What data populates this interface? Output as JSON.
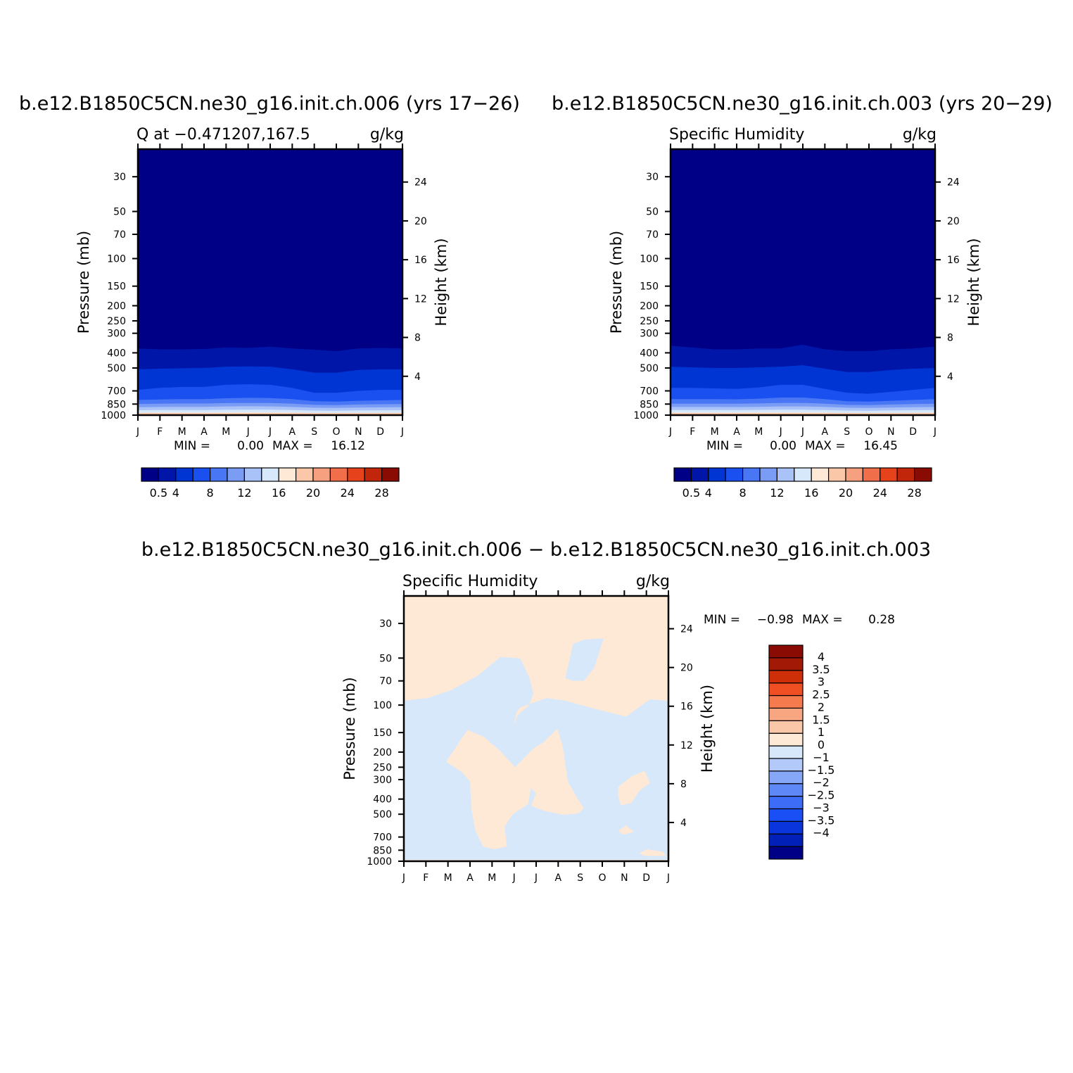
{
  "figure": {
    "panels": [
      {
        "title": "b.e12.B1850C5CN.ne30_g16.init.ch.006 (yrs 17−26)",
        "left_label": "Q at −0.471207,167.5",
        "right_label": "g/kg",
        "stats": {
          "min_label": "MIN =",
          "min_value": "0.00",
          "max_label": "MAX =",
          "max_value": "16.12"
        }
      },
      {
        "title": "b.e12.B1850C5CN.ne30_g16.init.ch.003 (yrs 20−29)",
        "left_label": "Specific Humidity",
        "right_label": "g/kg",
        "stats": {
          "min_label": "MIN =",
          "min_value": "0.00",
          "max_label": "MAX =",
          "max_value": "16.45"
        }
      },
      {
        "title": "b.e12.B1850C5CN.ne30_g16.init.ch.006 − b.e12.B1850C5CN.ne30_g16.init.ch.003",
        "left_label": "Specific Humidity",
        "right_label": "g/kg",
        "stats": {
          "min_label": "MIN =",
          "min_value": "−0.98",
          "max_label": "MAX =",
          "max_value": "0.28"
        }
      }
    ],
    "axes": {
      "ylabel_left": "Pressure (mb)",
      "ylabel_right": "Height (km)",
      "pressure_ticks": [
        "30",
        "50",
        "70",
        "100",
        "150",
        "200",
        "250",
        "300",
        "400",
        "500",
        "700",
        "850",
        "1000"
      ],
      "height_ticks": [
        "4",
        "8",
        "12",
        "16",
        "20",
        "24"
      ],
      "month_ticks": [
        "J",
        "F",
        "M",
        "A",
        "M",
        "J",
        "J",
        "A",
        "S",
        "O",
        "N",
        "D",
        "J"
      ]
    },
    "colorbar_abs": {
      "colors": [
        "#000087",
        "#0016a8",
        "#0035d4",
        "#1a4ff0",
        "#4876f5",
        "#7a9cf5",
        "#a9c2f7",
        "#d7e8fb",
        "#fde9d6",
        "#fbc7a9",
        "#f6a07f",
        "#f16e4b",
        "#e6421c",
        "#c2260a",
        "#8a0a04"
      ],
      "labels": [
        "0.5",
        "4",
        "8",
        "12",
        "16",
        "20",
        "24",
        "28"
      ]
    },
    "colorbar_diff": {
      "colors": [
        "#000087",
        "#0020b8",
        "#0a35dc",
        "#1a4ff5",
        "#3d6cf7",
        "#5f88f7",
        "#86a6f8",
        "#b3c9fa",
        "#d7e8fb",
        "#fde9d6",
        "#fbc7a9",
        "#f8a582",
        "#f57a4d",
        "#f04e23",
        "#cf2f08",
        "#a21a05",
        "#8a0a04"
      ],
      "labels": [
        "4",
        "3.5",
        "3",
        "2.5",
        "2",
        "1.5",
        "1",
        "0",
        "−1",
        "−1.5",
        "−2",
        "−2.5",
        "−3",
        "−3.5",
        "−4"
      ]
    }
  },
  "chart_data": [
    {
      "type": "heatmap",
      "title": "b.e12.B1850C5CN.ne30_g16.init.ch.006 (yrs 17−26)",
      "subtitle": "Q at −0.471207,167.5",
      "units": "g/kg",
      "xlabel": "",
      "ylabel": "Pressure (mb)",
      "ylabel_right": "Height (km)",
      "x": [
        "J",
        "F",
        "M",
        "A",
        "M",
        "J",
        "J",
        "A",
        "S",
        "O",
        "N",
        "D",
        "J"
      ],
      "ylim": [
        1000,
        20
      ],
      "y_scale": "log",
      "levels": [
        0.5,
        2,
        4,
        6,
        8,
        10,
        12,
        14,
        16,
        18,
        20,
        22,
        24,
        26,
        28
      ],
      "contour_pressure_mb": [
        [
          375,
          380,
          380,
          378,
          370,
          372,
          365,
          375,
          382,
          390,
          375,
          372,
          375
        ],
        [
          510,
          505,
          502,
          500,
          490,
          488,
          490,
          510,
          535,
          535,
          515,
          510,
          510
        ],
        [
          690,
          670,
          660,
          660,
          640,
          635,
          640,
          670,
          720,
          720,
          700,
          690,
          690
        ],
        [
          800,
          795,
          790,
          790,
          780,
          775,
          778,
          790,
          815,
          820,
          810,
          805,
          800
        ],
        [
          850,
          845,
          843,
          843,
          838,
          835,
          837,
          845,
          860,
          862,
          855,
          852,
          850
        ],
        [
          890,
          887,
          885,
          885,
          880,
          878,
          880,
          887,
          897,
          900,
          895,
          892,
          890
        ],
        [
          930,
          928,
          927,
          927,
          924,
          922,
          923,
          928,
          935,
          937,
          933,
          931,
          930
        ],
        [
          965,
          964,
          964,
          964,
          962,
          960,
          961,
          964,
          968,
          969,
          967,
          966,
          965
        ],
        [
          985,
          985,
          985,
          985,
          984,
          983,
          984,
          985,
          987,
          987,
          986,
          986,
          985
        ]
      ],
      "min": 0.0,
      "max": 16.12
    },
    {
      "type": "heatmap",
      "title": "b.e12.B1850C5CN.ne30_g16.init.ch.003 (yrs 20−29)",
      "subtitle": "Specific Humidity",
      "units": "g/kg",
      "xlabel": "",
      "ylabel": "Pressure (mb)",
      "ylabel_right": "Height (km)",
      "x": [
        "J",
        "F",
        "M",
        "A",
        "M",
        "J",
        "J",
        "A",
        "S",
        "O",
        "N",
        "D",
        "J"
      ],
      "ylim": [
        1000,
        20
      ],
      "y_scale": "log",
      "levels": [
        0.5,
        2,
        4,
        6,
        8,
        10,
        12,
        14,
        16,
        18,
        20,
        22,
        24,
        26,
        28
      ],
      "contour_pressure_mb": [
        [
          360,
          370,
          380,
          380,
          375,
          375,
          355,
          380,
          390,
          390,
          380,
          375,
          365
        ],
        [
          490,
          495,
          500,
          500,
          495,
          490,
          480,
          505,
          530,
          530,
          515,
          505,
          500
        ],
        [
          670,
          670,
          675,
          680,
          665,
          640,
          640,
          680,
          720,
          730,
          710,
          690,
          670
        ],
        [
          790,
          790,
          790,
          792,
          785,
          772,
          772,
          790,
          815,
          820,
          810,
          800,
          790
        ],
        [
          845,
          845,
          845,
          846,
          842,
          835,
          835,
          845,
          860,
          862,
          855,
          850,
          845
        ],
        [
          887,
          887,
          887,
          888,
          885,
          880,
          880,
          887,
          897,
          900,
          895,
          890,
          887
        ],
        [
          928,
          928,
          928,
          928,
          926,
          923,
          923,
          928,
          935,
          937,
          933,
          930,
          928
        ],
        [
          964,
          964,
          964,
          964,
          963,
          961,
          961,
          964,
          968,
          969,
          967,
          965,
          964
        ],
        [
          985,
          985,
          985,
          985,
          985,
          984,
          984,
          985,
          987,
          987,
          986,
          986,
          985
        ]
      ],
      "min": 0.0,
      "max": 16.45
    },
    {
      "type": "heatmap",
      "title": "b.e12.B1850C5CN.ne30_g16.init.ch.006 − b.e12.B1850C5CN.ne30_g16.init.ch.003",
      "subtitle": "Specific Humidity",
      "units": "g/kg",
      "xlabel": "",
      "ylabel": "Pressure (mb)",
      "ylabel_right": "Height (km)",
      "x": [
        "J",
        "F",
        "M",
        "A",
        "M",
        "J",
        "J",
        "A",
        "S",
        "O",
        "N",
        "D",
        "J"
      ],
      "ylim": [
        1000,
        20
      ],
      "y_scale": "log",
      "levels": [
        -4,
        -3.5,
        -3,
        -2.5,
        -2,
        -1.5,
        -1,
        0,
        1,
        1.5,
        2,
        2.5,
        3,
        3.5,
        4
      ],
      "regions": [
        {
          "value_range": [
            0,
            1
          ],
          "description": "upper levels above ~100 mb and mid-troposphere patches"
        },
        {
          "value_range": [
            -1,
            0
          ],
          "description": "remaining areas"
        }
      ],
      "min": -0.98,
      "max": 0.28
    }
  ]
}
